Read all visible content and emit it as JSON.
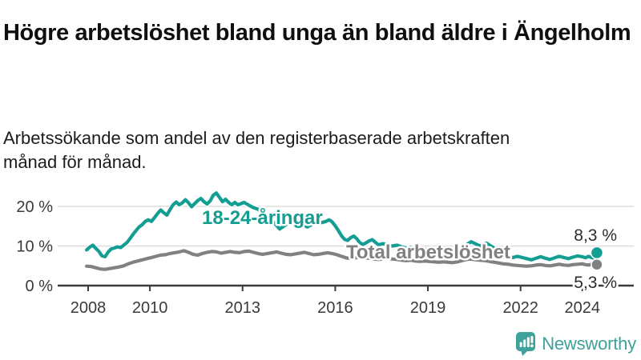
{
  "header": {
    "title": "Högre arbetslöshet bland unga än bland äldre i Ängelholm",
    "subtitle": "Arbetssökande som andel av den registerbaserade arbetskraften månad för månad."
  },
  "chart_data": {
    "type": "line",
    "title": "Högre arbetslöshet bland unga än bland äldre i Ängelholm",
    "xlabel": "",
    "ylabel": "Arbetssökande som andel av arbetskraften (%)",
    "grid": "horizontal",
    "legend_position": "inline-labels",
    "x_axis": {
      "range": [
        2007.9,
        2024.8
      ],
      "ticks": [
        {
          "value": 2008,
          "label": "2008"
        },
        {
          "value": 2010,
          "label": "2010"
        },
        {
          "value": 2013,
          "label": "2013"
        },
        {
          "value": 2016,
          "label": "2016"
        },
        {
          "value": 2019,
          "label": "2019"
        },
        {
          "value": 2022,
          "label": "2022"
        },
        {
          "value": 2024,
          "label": "2024"
        }
      ]
    },
    "y_axis": {
      "range": [
        0,
        25
      ],
      "ticks": [
        {
          "value": 0,
          "label": "0 %"
        },
        {
          "value": 10,
          "label": "10 %"
        },
        {
          "value": 20,
          "label": "20 %"
        }
      ]
    },
    "series": [
      {
        "name": "Total arbetslöshet",
        "color": "#818181",
        "end_value": 5.3,
        "end_label": "5,3 %",
        "points": [
          [
            2007.95,
            4.9
          ],
          [
            2008.1,
            4.8
          ],
          [
            2008.25,
            4.5
          ],
          [
            2008.4,
            4.2
          ],
          [
            2008.55,
            4.1
          ],
          [
            2008.7,
            4.3
          ],
          [
            2008.85,
            4.5
          ],
          [
            2009.0,
            4.7
          ],
          [
            2009.15,
            5.0
          ],
          [
            2009.3,
            5.5
          ],
          [
            2009.45,
            5.9
          ],
          [
            2009.6,
            6.2
          ],
          [
            2009.75,
            6.5
          ],
          [
            2009.9,
            6.8
          ],
          [
            2010.05,
            7.1
          ],
          [
            2010.2,
            7.4
          ],
          [
            2010.35,
            7.7
          ],
          [
            2010.5,
            7.8
          ],
          [
            2010.65,
            8.1
          ],
          [
            2010.8,
            8.3
          ],
          [
            2010.95,
            8.5
          ],
          [
            2011.1,
            8.8
          ],
          [
            2011.25,
            8.4
          ],
          [
            2011.4,
            7.9
          ],
          [
            2011.55,
            7.7
          ],
          [
            2011.7,
            8.1
          ],
          [
            2011.85,
            8.4
          ],
          [
            2012.0,
            8.6
          ],
          [
            2012.15,
            8.5
          ],
          [
            2012.3,
            8.2
          ],
          [
            2012.45,
            8.4
          ],
          [
            2012.6,
            8.6
          ],
          [
            2012.75,
            8.4
          ],
          [
            2012.9,
            8.3
          ],
          [
            2013.05,
            8.6
          ],
          [
            2013.2,
            8.7
          ],
          [
            2013.35,
            8.4
          ],
          [
            2013.5,
            8.1
          ],
          [
            2013.65,
            7.9
          ],
          [
            2013.8,
            8.1
          ],
          [
            2013.95,
            8.3
          ],
          [
            2014.1,
            8.5
          ],
          [
            2014.25,
            8.2
          ],
          [
            2014.4,
            7.9
          ],
          [
            2014.55,
            7.8
          ],
          [
            2014.7,
            8.0
          ],
          [
            2014.85,
            8.2
          ],
          [
            2015.0,
            8.4
          ],
          [
            2015.15,
            8.1
          ],
          [
            2015.3,
            7.8
          ],
          [
            2015.45,
            7.9
          ],
          [
            2015.6,
            8.1
          ],
          [
            2015.75,
            8.3
          ],
          [
            2015.9,
            8.1
          ],
          [
            2016.05,
            7.8
          ],
          [
            2016.2,
            7.4
          ],
          [
            2016.35,
            7.0
          ],
          [
            2016.5,
            6.8
          ],
          [
            2016.65,
            7.0
          ],
          [
            2016.8,
            7.2
          ],
          [
            2016.95,
            7.0
          ],
          [
            2017.1,
            6.9
          ],
          [
            2017.25,
            6.7
          ],
          [
            2017.4,
            6.6
          ],
          [
            2017.55,
            6.8
          ],
          [
            2017.7,
            6.9
          ],
          [
            2017.85,
            6.7
          ],
          [
            2018.0,
            6.6
          ],
          [
            2018.15,
            6.4
          ],
          [
            2018.3,
            6.3
          ],
          [
            2018.45,
            6.4
          ],
          [
            2018.6,
            6.2
          ],
          [
            2018.75,
            6.1
          ],
          [
            2018.9,
            6.2
          ],
          [
            2019.05,
            6.1
          ],
          [
            2019.2,
            6.0
          ],
          [
            2019.35,
            5.9
          ],
          [
            2019.5,
            6.0
          ],
          [
            2019.65,
            5.9
          ],
          [
            2019.8,
            5.8
          ],
          [
            2019.95,
            6.0
          ],
          [
            2020.1,
            6.3
          ],
          [
            2020.25,
            6.6
          ],
          [
            2020.4,
            6.7
          ],
          [
            2020.55,
            6.5
          ],
          [
            2020.7,
            6.4
          ],
          [
            2020.85,
            6.3
          ],
          [
            2021.0,
            6.1
          ],
          [
            2021.15,
            5.9
          ],
          [
            2021.3,
            5.7
          ],
          [
            2021.45,
            5.5
          ],
          [
            2021.6,
            5.4
          ],
          [
            2021.75,
            5.2
          ],
          [
            2021.9,
            5.1
          ],
          [
            2022.05,
            5.0
          ],
          [
            2022.2,
            4.9
          ],
          [
            2022.35,
            5.0
          ],
          [
            2022.5,
            5.2
          ],
          [
            2022.65,
            5.3
          ],
          [
            2022.8,
            5.1
          ],
          [
            2022.95,
            5.0
          ],
          [
            2023.1,
            5.2
          ],
          [
            2023.25,
            5.4
          ],
          [
            2023.4,
            5.2
          ],
          [
            2023.55,
            5.1
          ],
          [
            2023.7,
            5.3
          ],
          [
            2023.85,
            5.4
          ],
          [
            2024.0,
            5.5
          ],
          [
            2024.1,
            5.3
          ],
          [
            2024.2,
            5.2
          ],
          [
            2024.3,
            5.4
          ],
          [
            2024.4,
            5.2
          ],
          [
            2024.47,
            5.3
          ]
        ]
      },
      {
        "name": "18-24-åringar",
        "color": "#149e93",
        "end_value": 8.3,
        "end_label": "8,3 %",
        "points": [
          [
            2007.95,
            9.0
          ],
          [
            2008.05,
            9.7
          ],
          [
            2008.15,
            10.2
          ],
          [
            2008.25,
            9.4
          ],
          [
            2008.35,
            8.6
          ],
          [
            2008.45,
            7.5
          ],
          [
            2008.55,
            7.3
          ],
          [
            2008.65,
            8.5
          ],
          [
            2008.75,
            9.3
          ],
          [
            2008.85,
            9.5
          ],
          [
            2008.95,
            9.8
          ],
          [
            2009.05,
            9.6
          ],
          [
            2009.15,
            10.2
          ],
          [
            2009.25,
            10.8
          ],
          [
            2009.35,
            11.8
          ],
          [
            2009.45,
            12.9
          ],
          [
            2009.55,
            13.9
          ],
          [
            2009.65,
            14.8
          ],
          [
            2009.75,
            15.4
          ],
          [
            2009.85,
            16.2
          ],
          [
            2009.95,
            16.6
          ],
          [
            2010.05,
            16.2
          ],
          [
            2010.15,
            17.2
          ],
          [
            2010.25,
            18.2
          ],
          [
            2010.35,
            19.1
          ],
          [
            2010.45,
            18.4
          ],
          [
            2010.55,
            17.8
          ],
          [
            2010.65,
            19.2
          ],
          [
            2010.75,
            20.4
          ],
          [
            2010.85,
            21.1
          ],
          [
            2010.95,
            20.4
          ],
          [
            2011.05,
            20.9
          ],
          [
            2011.15,
            21.7
          ],
          [
            2011.25,
            20.9
          ],
          [
            2011.35,
            19.9
          ],
          [
            2011.45,
            20.7
          ],
          [
            2011.55,
            21.5
          ],
          [
            2011.65,
            22.0
          ],
          [
            2011.75,
            21.2
          ],
          [
            2011.85,
            20.6
          ],
          [
            2011.95,
            21.4
          ],
          [
            2012.05,
            22.8
          ],
          [
            2012.15,
            23.4
          ],
          [
            2012.25,
            22.3
          ],
          [
            2012.35,
            21.2
          ],
          [
            2012.45,
            21.8
          ],
          [
            2012.55,
            21.0
          ],
          [
            2012.65,
            20.4
          ],
          [
            2012.75,
            21.0
          ],
          [
            2012.85,
            20.4
          ],
          [
            2012.95,
            20.7
          ],
          [
            2013.05,
            21.0
          ],
          [
            2013.2,
            20.3
          ],
          [
            2013.35,
            19.7
          ],
          [
            2013.5,
            19.3
          ],
          [
            2013.65,
            18.4
          ],
          [
            2013.8,
            17.3
          ],
          [
            2013.95,
            16.4
          ],
          [
            2014.1,
            15.2
          ],
          [
            2014.2,
            14.3
          ],
          [
            2014.35,
            15.1
          ],
          [
            2014.5,
            15.9
          ],
          [
            2014.65,
            15.5
          ],
          [
            2014.8,
            15.1
          ],
          [
            2014.95,
            15.4
          ],
          [
            2015.1,
            14.8
          ],
          [
            2015.25,
            15.5
          ],
          [
            2015.4,
            15.7
          ],
          [
            2015.55,
            15.9
          ],
          [
            2015.7,
            16.2
          ],
          [
            2015.8,
            16.6
          ],
          [
            2015.9,
            16.1
          ],
          [
            2016.0,
            15.1
          ],
          [
            2016.1,
            13.9
          ],
          [
            2016.2,
            12.6
          ],
          [
            2016.3,
            11.7
          ],
          [
            2016.4,
            11.4
          ],
          [
            2016.5,
            12.1
          ],
          [
            2016.6,
            12.5
          ],
          [
            2016.7,
            11.8
          ],
          [
            2016.8,
            10.8
          ],
          [
            2016.9,
            10.4
          ],
          [
            2017.0,
            10.8
          ],
          [
            2017.1,
            11.3
          ],
          [
            2017.2,
            11.6
          ],
          [
            2017.3,
            10.9
          ],
          [
            2017.4,
            10.3
          ],
          [
            2017.55,
            10.6
          ],
          [
            2017.7,
            10.3
          ],
          [
            2017.85,
            10.0
          ],
          [
            2018.0,
            10.2
          ],
          [
            2018.15,
            9.8
          ],
          [
            2018.3,
            9.5
          ],
          [
            2018.45,
            9.7
          ],
          [
            2018.6,
            9.3
          ],
          [
            2018.75,
            9.0
          ],
          [
            2018.9,
            9.2
          ],
          [
            2019.05,
            8.9
          ],
          [
            2019.2,
            8.6
          ],
          [
            2019.35,
            8.4
          ],
          [
            2019.5,
            8.7
          ],
          [
            2019.65,
            8.3
          ],
          [
            2019.8,
            8.5
          ],
          [
            2019.95,
            8.8
          ],
          [
            2020.1,
            9.4
          ],
          [
            2020.25,
            10.3
          ],
          [
            2020.4,
            11.1
          ],
          [
            2020.5,
            10.7
          ],
          [
            2020.6,
            10.3
          ],
          [
            2020.7,
            10.0
          ],
          [
            2020.8,
            10.4
          ],
          [
            2020.9,
            10.7
          ],
          [
            2021.0,
            10.2
          ],
          [
            2021.15,
            9.5
          ],
          [
            2021.3,
            8.6
          ],
          [
            2021.45,
            7.8
          ],
          [
            2021.6,
            7.3
          ],
          [
            2021.75,
            7.1
          ],
          [
            2021.9,
            7.4
          ],
          [
            2022.05,
            7.1
          ],
          [
            2022.2,
            6.8
          ],
          [
            2022.35,
            6.5
          ],
          [
            2022.5,
            6.9
          ],
          [
            2022.65,
            7.3
          ],
          [
            2022.8,
            6.9
          ],
          [
            2022.95,
            6.6
          ],
          [
            2023.1,
            7.0
          ],
          [
            2023.25,
            7.4
          ],
          [
            2023.4,
            7.1
          ],
          [
            2023.55,
            6.8
          ],
          [
            2023.7,
            7.2
          ],
          [
            2023.85,
            7.5
          ],
          [
            2024.0,
            7.3
          ],
          [
            2024.1,
            7.0
          ],
          [
            2024.2,
            7.4
          ],
          [
            2024.3,
            7.1
          ],
          [
            2024.4,
            6.9
          ],
          [
            2024.47,
            8.3
          ]
        ]
      }
    ]
  },
  "footer": {
    "brand": "Newsworthy",
    "logo_icon": "bar-chart-speech-bubble-icon"
  },
  "colors": {
    "young_series": "#149e93",
    "total_series": "#818181",
    "axis": "#3a3a3a",
    "grid": "#d8d8d8",
    "brand_teal": "#3ea29a",
    "background": "#ffffff"
  }
}
